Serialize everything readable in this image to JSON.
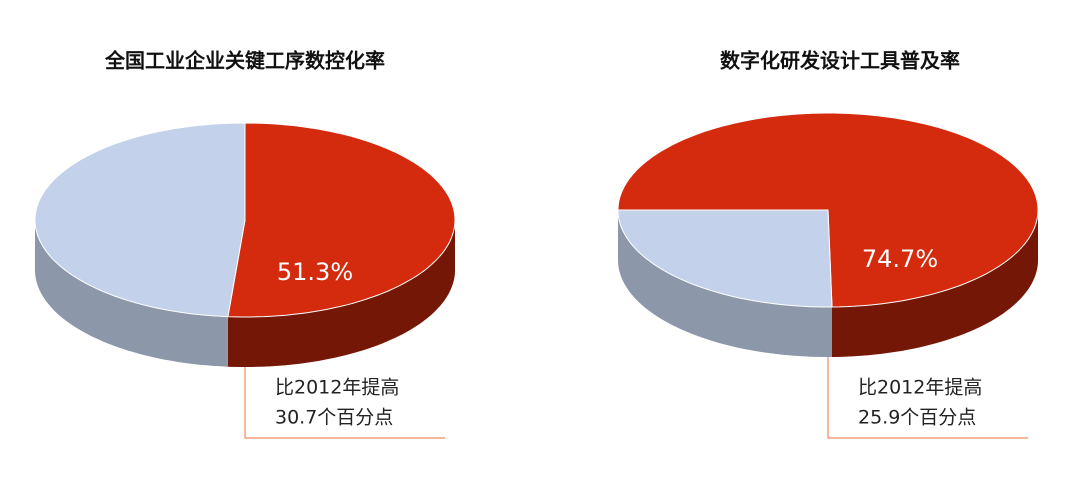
{
  "chart_data": [
    {
      "type": "pie",
      "title": "全国工业企业关键工序数控化率",
      "values": [
        51.3,
        48.7
      ],
      "value_labels": [
        "51.3%",
        null
      ],
      "colors": [
        "#d42a0e",
        "#c3d1ea"
      ],
      "annotation": [
        "比2012年提高",
        "30.7个百分点"
      ]
    },
    {
      "type": "pie",
      "title": "数字化研发设计工具普及率",
      "values": [
        74.7,
        25.3
      ],
      "value_labels": [
        "74.7%",
        null
      ],
      "colors": [
        "#d42a0e",
        "#c3d1ea"
      ],
      "annotation": [
        "比2012年提高",
        "25.9个百分点"
      ]
    }
  ]
}
